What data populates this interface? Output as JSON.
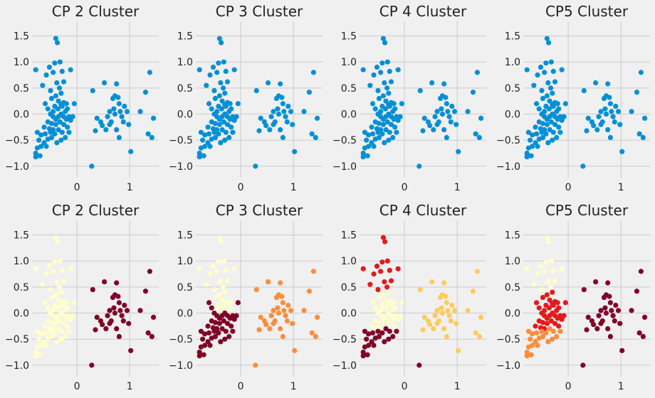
{
  "chart_data": [
    {
      "type": "scatter",
      "title": "CP 2 Cluster",
      "coloring": "single",
      "xticks": [
        0,
        1
      ],
      "yticks": [
        -1.0,
        -0.5,
        0.0,
        0.5,
        1.0,
        1.5
      ],
      "xlim": [
        -0.85,
        1.55
      ],
      "ylim": [
        -1.22,
        1.78
      ],
      "grid": true
    },
    {
      "type": "scatter",
      "title": "CP 3 Cluster",
      "coloring": "single",
      "xticks": [
        0,
        1
      ],
      "yticks": [
        -1.0,
        -0.5,
        0.0,
        0.5,
        1.0,
        1.5
      ],
      "xlim": [
        -0.85,
        1.55
      ],
      "ylim": [
        -1.22,
        1.78
      ],
      "grid": true
    },
    {
      "type": "scatter",
      "title": "CP 4 Cluster",
      "coloring": "single",
      "xticks": [
        0,
        1
      ],
      "yticks": [
        -1.0,
        -0.5,
        0.0,
        0.5,
        1.0,
        1.5
      ],
      "xlim": [
        -0.85,
        1.55
      ],
      "ylim": [
        -1.22,
        1.78
      ],
      "grid": true
    },
    {
      "type": "scatter",
      "title": "CP5 Cluster",
      "coloring": "single",
      "xticks": [
        0,
        1
      ],
      "yticks": [
        -1.0,
        -0.5,
        0.0,
        0.5,
        1.0,
        1.5
      ],
      "xlim": [
        -0.85,
        1.55
      ],
      "ylim": [
        -1.22,
        1.78
      ],
      "grid": true
    },
    {
      "type": "scatter",
      "title": "CP 2 Cluster",
      "coloring": "k2",
      "xticks": [
        0,
        1
      ],
      "yticks": [
        -1.0,
        -0.5,
        0.0,
        0.5,
        1.0,
        1.5
      ],
      "xlim": [
        -0.85,
        1.55
      ],
      "ylim": [
        -1.22,
        1.78
      ],
      "grid": true
    },
    {
      "type": "scatter",
      "title": "CP 3 Cluster",
      "coloring": "k3",
      "xticks": [
        0,
        1
      ],
      "yticks": [
        -1.0,
        -0.5,
        0.0,
        0.5,
        1.0,
        1.5
      ],
      "xlim": [
        -0.85,
        1.55
      ],
      "ylim": [
        -1.22,
        1.78
      ],
      "grid": true
    },
    {
      "type": "scatter",
      "title": "CP 4 Cluster",
      "coloring": "k4",
      "xticks": [
        0,
        1
      ],
      "yticks": [
        -1.0,
        -0.5,
        0.0,
        0.5,
        1.0,
        1.5
      ],
      "xlim": [
        -0.85,
        1.55
      ],
      "ylim": [
        -1.22,
        1.78
      ],
      "grid": true
    },
    {
      "type": "scatter",
      "title": "CP5 Cluster",
      "coloring": "k5",
      "xticks": [
        0,
        1
      ],
      "yticks": [
        -1.0,
        -0.5,
        0.0,
        0.5,
        1.0,
        1.5
      ],
      "xlim": [
        -0.85,
        1.55
      ],
      "ylim": [
        -1.22,
        1.78
      ],
      "grid": true
    }
  ],
  "points": [
    [
      -0.78,
      0.85,
      0,
      2,
      2,
      2,
      3
    ],
    [
      -0.65,
      0.55,
      0,
      2,
      2,
      2,
      3
    ],
    [
      -0.58,
      0.75,
      0,
      2,
      2,
      2,
      3
    ],
    [
      -0.52,
      0.9,
      0,
      2,
      2,
      2,
      3
    ],
    [
      -0.45,
      0.8,
      0,
      2,
      2,
      2,
      3
    ],
    [
      -0.4,
      1.45,
      0,
      2,
      2,
      2,
      3
    ],
    [
      -0.37,
      1.37,
      0,
      2,
      2,
      2,
      3
    ],
    [
      -0.42,
      0.98,
      0,
      2,
      2,
      2,
      3
    ],
    [
      -0.32,
      1.0,
      0,
      2,
      2,
      2,
      3
    ],
    [
      -0.28,
      0.82,
      0,
      2,
      2,
      2,
      3
    ],
    [
      -0.5,
      0.45,
      0,
      2,
      2,
      2,
      3
    ],
    [
      -0.38,
      0.6,
      0,
      2,
      2,
      2,
      3
    ],
    [
      -0.33,
      0.5,
      0,
      2,
      2,
      2,
      3
    ],
    [
      -0.25,
      0.62,
      0,
      2,
      2,
      2,
      3
    ],
    [
      -0.12,
      0.85,
      0,
      2,
      2,
      2,
      3
    ],
    [
      -0.48,
      0.3,
      0,
      2,
      0,
      0,
      1
    ],
    [
      -0.4,
      0.35,
      0,
      2,
      0,
      0,
      1
    ],
    [
      -0.35,
      0.25,
      0,
      2,
      0,
      0,
      1
    ],
    [
      -0.3,
      0.4,
      0,
      2,
      0,
      0,
      1
    ],
    [
      -0.42,
      0.15,
      0,
      2,
      0,
      0,
      1
    ],
    [
      -0.36,
      0.1,
      0,
      2,
      0,
      0,
      1
    ],
    [
      -0.3,
      0.18,
      0,
      2,
      0,
      0,
      1
    ],
    [
      -0.25,
      0.22,
      0,
      2,
      0,
      0,
      1
    ],
    [
      -0.22,
      0.05,
      0,
      2,
      0,
      0,
      1
    ],
    [
      -0.18,
      0.1,
      0,
      2,
      0,
      0,
      1
    ],
    [
      -0.45,
      0.05,
      0,
      2,
      0,
      0,
      1
    ],
    [
      -0.28,
      0.15,
      0,
      2,
      0,
      0,
      1
    ],
    [
      -0.2,
      0.2,
      0,
      2,
      0,
      0,
      1
    ],
    [
      -0.6,
      0.2,
      0,
      0,
      0,
      0,
      0
    ],
    [
      -0.55,
      0.1,
      0,
      0,
      0,
      0,
      0
    ],
    [
      -0.5,
      0.0,
      0,
      0,
      0,
      0,
      0
    ],
    [
      -0.45,
      -0.05,
      0,
      0,
      0,
      0,
      0
    ],
    [
      -0.4,
      -0.1,
      0,
      0,
      0,
      0,
      0
    ],
    [
      -0.35,
      -0.05,
      0,
      0,
      0,
      0,
      0
    ],
    [
      -0.3,
      0.0,
      0,
      0,
      0,
      0,
      0
    ],
    [
      -0.25,
      -0.05,
      0,
      0,
      0,
      0,
      0
    ],
    [
      -0.2,
      -0.1,
      0,
      0,
      0,
      0,
      0
    ],
    [
      -0.15,
      -0.05,
      0,
      0,
      0,
      0,
      0
    ],
    [
      -0.05,
      0.2,
      0,
      0,
      0,
      0,
      0
    ],
    [
      -0.08,
      -0.05,
      0,
      0,
      0,
      0,
      0
    ],
    [
      -0.12,
      -0.12,
      0,
      0,
      0,
      0,
      0
    ],
    [
      -0.55,
      -0.15,
      0,
      0,
      0,
      0,
      0
    ],
    [
      -0.48,
      -0.18,
      0,
      0,
      0,
      0,
      0
    ],
    [
      -0.4,
      -0.2,
      0,
      0,
      0,
      0,
      0
    ],
    [
      -0.32,
      -0.15,
      0,
      0,
      0,
      0,
      0
    ],
    [
      -0.25,
      -0.2,
      0,
      0,
      0,
      0,
      0
    ],
    [
      -0.18,
      -0.25,
      0,
      0,
      0,
      0,
      0
    ],
    [
      -0.62,
      -0.25,
      0,
      0,
      0,
      0,
      0
    ],
    [
      -0.52,
      -0.28,
      0,
      0,
      0,
      0,
      0
    ],
    [
      -0.45,
      -0.3,
      0,
      0,
      0,
      0,
      0
    ],
    [
      -0.75,
      -0.35,
      0,
      0,
      3,
      3,
      0
    ],
    [
      -0.68,
      -0.4,
      0,
      0,
      3,
      3,
      0
    ],
    [
      -0.6,
      -0.38,
      0,
      0,
      3,
      3,
      0
    ],
    [
      -0.5,
      -0.35,
      0,
      0,
      3,
      3,
      0
    ],
    [
      -0.42,
      -0.38,
      0,
      0,
      3,
      3,
      0
    ],
    [
      -0.35,
      -0.3,
      0,
      0,
      3,
      3,
      0
    ],
    [
      -0.28,
      -0.35,
      0,
      0,
      3,
      3,
      0
    ],
    [
      -0.72,
      -0.5,
      0,
      0,
      3,
      3,
      0
    ],
    [
      -0.62,
      -0.55,
      0,
      0,
      3,
      3,
      0
    ],
    [
      -0.55,
      -0.48,
      0,
      0,
      3,
      3,
      0
    ],
    [
      -0.48,
      -0.45,
      0,
      0,
      3,
      3,
      0
    ],
    [
      -0.38,
      -0.55,
      0,
      0,
      3,
      3,
      0
    ],
    [
      -0.3,
      -0.5,
      0,
      0,
      3,
      3,
      0
    ],
    [
      -0.75,
      -0.65,
      0,
      0,
      3,
      3,
      0
    ],
    [
      -0.68,
      -0.62,
      0,
      0,
      3,
      3,
      0
    ],
    [
      -0.58,
      -0.62,
      0,
      0,
      3,
      3,
      0
    ],
    [
      -0.78,
      -0.75,
      0,
      0,
      3,
      3,
      0
    ],
    [
      -0.7,
      -0.8,
      0,
      0,
      3,
      3,
      0
    ],
    [
      -0.78,
      -0.82,
      0,
      0,
      3,
      3,
      0
    ],
    [
      -0.22,
      -0.45,
      0,
      0,
      3,
      3,
      0
    ],
    [
      -0.15,
      -0.35,
      0,
      0,
      3,
      3,
      0
    ],
    [
      0.28,
      -1.0,
      1,
      1,
      3,
      1,
      2
    ],
    [
      0.3,
      0.45,
      1,
      1,
      1,
      1,
      2
    ],
    [
      0.35,
      -0.32,
      1,
      1,
      1,
      1,
      2
    ],
    [
      0.38,
      -0.08,
      1,
      1,
      1,
      1,
      2
    ],
    [
      0.45,
      -0.15,
      1,
      1,
      1,
      1,
      2
    ],
    [
      0.48,
      -0.22,
      1,
      1,
      1,
      1,
      2
    ],
    [
      0.52,
      0.6,
      1,
      1,
      1,
      1,
      0
    ],
    [
      0.55,
      -0.3,
      1,
      1,
      1,
      1,
      2
    ],
    [
      0.58,
      -0.05,
      1,
      1,
      1,
      1,
      2
    ],
    [
      0.62,
      -0.2,
      1,
      1,
      1,
      1,
      2
    ],
    [
      0.65,
      -0.15,
      1,
      1,
      1,
      1,
      2
    ],
    [
      0.68,
      0.3,
      1,
      1,
      1,
      1,
      0
    ],
    [
      0.72,
      0.35,
      1,
      1,
      1,
      1,
      0
    ],
    [
      0.75,
      0.58,
      1,
      1,
      1,
      1,
      0
    ],
    [
      0.7,
      0.1,
      1,
      1,
      1,
      1,
      0
    ],
    [
      0.72,
      0.0,
      1,
      1,
      1,
      1,
      0
    ],
    [
      0.75,
      -0.3,
      1,
      1,
      1,
      1,
      2
    ],
    [
      0.78,
      0.32,
      1,
      1,
      1,
      1,
      0
    ],
    [
      0.8,
      0.2,
      1,
      1,
      1,
      1,
      0
    ],
    [
      0.82,
      0.05,
      1,
      1,
      1,
      1,
      0
    ],
    [
      0.85,
      -0.05,
      1,
      1,
      1,
      1,
      0
    ],
    [
      0.88,
      -0.15,
      1,
      1,
      1,
      1,
      2
    ],
    [
      0.8,
      -0.45,
      1,
      1,
      1,
      1,
      2
    ],
    [
      0.9,
      0.15,
      1,
      1,
      1,
      1,
      0
    ],
    [
      0.95,
      0.05,
      1,
      1,
      1,
      1,
      0
    ],
    [
      0.98,
      -0.2,
      1,
      1,
      1,
      1,
      2
    ],
    [
      1.02,
      -0.72,
      1,
      1,
      1,
      1,
      2
    ],
    [
      1.2,
      0.05,
      1,
      1,
      1,
      1,
      0
    ],
    [
      1.3,
      0.42,
      1,
      1,
      1,
      1,
      0
    ],
    [
      1.35,
      -0.38,
      1,
      1,
      1,
      1,
      2
    ],
    [
      1.38,
      0.8,
      1,
      1,
      1,
      1,
      0
    ],
    [
      1.42,
      -0.45,
      1,
      1,
      1,
      1,
      2
    ],
    [
      1.45,
      -0.08,
      1,
      1,
      1,
      1,
      0
    ],
    [
      0.62,
      0.05,
      1,
      1,
      1,
      1,
      0
    ]
  ],
  "palettes": {
    "single": [
      "#008fd5"
    ],
    "k2": [
      "#ffffcc",
      "#800026"
    ],
    "k3": [
      "#800026",
      "#fd8d3c",
      "#ffffcc"
    ],
    "k4": [
      "#ffffcc",
      "#fecc5c",
      "#e31a1c",
      "#800026"
    ],
    "k5": [
      "#e31a1c",
      "#800026",
      "#ffffcc",
      "#fd8d3c"
    ]
  }
}
